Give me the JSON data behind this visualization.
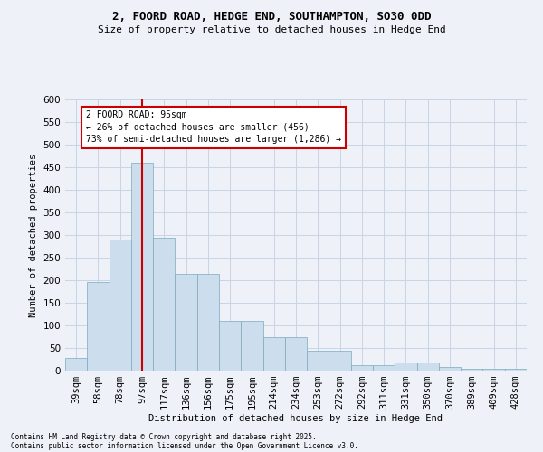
{
  "title": "2, FOORD ROAD, HEDGE END, SOUTHAMPTON, SO30 0DD",
  "subtitle": "Size of property relative to detached houses in Hedge End",
  "xlabel": "Distribution of detached houses by size in Hedge End",
  "ylabel": "Number of detached properties",
  "footer1": "Contains HM Land Registry data © Crown copyright and database right 2025.",
  "footer2": "Contains public sector information licensed under the Open Government Licence v3.0.",
  "categories": [
    "39sqm",
    "58sqm",
    "78sqm",
    "97sqm",
    "117sqm",
    "136sqm",
    "156sqm",
    "175sqm",
    "195sqm",
    "214sqm",
    "234sqm",
    "253sqm",
    "272sqm",
    "292sqm",
    "311sqm",
    "331sqm",
    "350sqm",
    "370sqm",
    "389sqm",
    "409sqm",
    "428sqm"
  ],
  "values": [
    28,
    197,
    290,
    460,
    295,
    215,
    215,
    110,
    110,
    75,
    75,
    45,
    45,
    12,
    12,
    18,
    18,
    9,
    5,
    5,
    5
  ],
  "bar_color": "#ccdded",
  "bar_edge_color": "#7aaabb",
  "background_color": "#eef2f8",
  "grid_color": "#c8d4e4",
  "red_line_index": 3,
  "annotation_text": "2 FOORD ROAD: 95sqm\n← 26% of detached houses are smaller (456)\n73% of semi-detached houses are larger (1,286) →",
  "annotation_box_color": "#ffffff",
  "annotation_border_color": "#cc0000",
  "red_line_color": "#cc0000",
  "ylim": [
    0,
    600
  ],
  "yticks": [
    0,
    50,
    100,
    150,
    200,
    250,
    300,
    350,
    400,
    450,
    500,
    550,
    600
  ]
}
